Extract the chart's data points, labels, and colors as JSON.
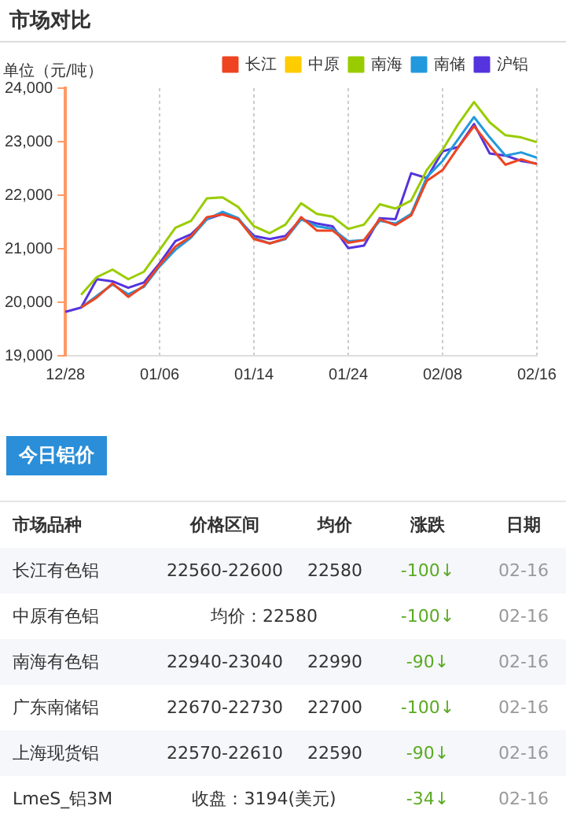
{
  "chart_data": {
    "type": "line",
    "title": "市场对比",
    "ylabel": "单位（元/吨）",
    "categories": [
      "12/28",
      null,
      null,
      null,
      null,
      null,
      "01/06",
      null,
      null,
      null,
      null,
      null,
      "01/14",
      null,
      null,
      null,
      null,
      null,
      "01/24",
      null,
      null,
      null,
      null,
      null,
      "02/08",
      null,
      null,
      null,
      null,
      null,
      "02/16"
    ],
    "series": [
      {
        "name": "长江",
        "color": "#ee4422",
        "values": [
          null,
          19900,
          20090,
          20350,
          20100,
          20310,
          20700,
          21040,
          21230,
          21590,
          21640,
          21550,
          21180,
          21100,
          21190,
          21590,
          21340,
          21340,
          21110,
          21160,
          21550,
          21440,
          21620,
          22270,
          22470,
          22900,
          23290,
          22920,
          22570,
          22670,
          22580
        ]
      },
      {
        "name": "中原",
        "color": "#ffcc00",
        "values": [
          null,
          null,
          null,
          null,
          null,
          null,
          null,
          null,
          null,
          null,
          null,
          null,
          null,
          null,
          null,
          null,
          null,
          null,
          null,
          null,
          null,
          null,
          null,
          null,
          null,
          null,
          null,
          null,
          null,
          null,
          null
        ]
      },
      {
        "name": "南海",
        "color": "#99cc00",
        "values": [
          null,
          20140,
          20470,
          20610,
          20430,
          20570,
          20980,
          21390,
          21520,
          21940,
          21960,
          21780,
          21420,
          21290,
          21450,
          21850,
          21650,
          21600,
          21370,
          21450,
          21830,
          21750,
          21900,
          22470,
          22850,
          23330,
          23740,
          23360,
          23120,
          23080,
          22990
        ]
      },
      {
        "name": "南储",
        "color": "#2299dd",
        "values": [
          null,
          19900,
          20120,
          20330,
          20150,
          20290,
          20670,
          20980,
          21210,
          21550,
          21690,
          21570,
          21200,
          21100,
          21180,
          21550,
          21420,
          21370,
          21140,
          21160,
          21520,
          21470,
          21650,
          22340,
          22640,
          23050,
          23460,
          23080,
          22740,
          22800,
          22700
        ]
      },
      {
        "name": "沪铝",
        "color": "#5533dd",
        "values": [
          19820,
          19900,
          20430,
          20390,
          20270,
          20370,
          20730,
          21140,
          21270,
          21550,
          21650,
          21550,
          21240,
          21180,
          21240,
          21550,
          21470,
          21420,
          21010,
          21060,
          21570,
          21550,
          22410,
          22320,
          22820,
          22900,
          23330,
          22780,
          22740,
          22640,
          22590
        ]
      }
    ],
    "ylim": [
      19000,
      24000
    ],
    "yticks": [
      {
        "value": 19000,
        "label": "19,000"
      },
      {
        "value": 20000,
        "label": "20,000"
      },
      {
        "value": 21000,
        "label": "21,000"
      },
      {
        "value": 22000,
        "label": "22,000"
      },
      {
        "value": 23000,
        "label": "23,000"
      },
      {
        "value": 24000,
        "label": "24,000"
      }
    ],
    "grid": "x",
    "legend": "top right",
    "marker": "none",
    "line_style": "solid",
    "annotations": [
      "今日铝价",
      "市场品种",
      "价格区间",
      "均价",
      "涨跌",
      "日期",
      "长江有色铝",
      "22560-22600",
      "22580",
      "-100↓",
      "02-16",
      "中原有色铝",
      "均价：22580",
      "-100↓",
      "02-16",
      "南海有色铝",
      "22940-23040",
      "22990",
      "-90↓",
      "02-16",
      "广东南储铝",
      "22670-22730",
      "22700",
      "-100↓",
      "02-16",
      "上海现货铝",
      "22570-22610",
      "22590",
      "-90↓",
      "02-16",
      "LmeS_铝3M",
      "收盘：3194(美元)",
      "-34↓",
      "02-16"
    ]
  }
}
